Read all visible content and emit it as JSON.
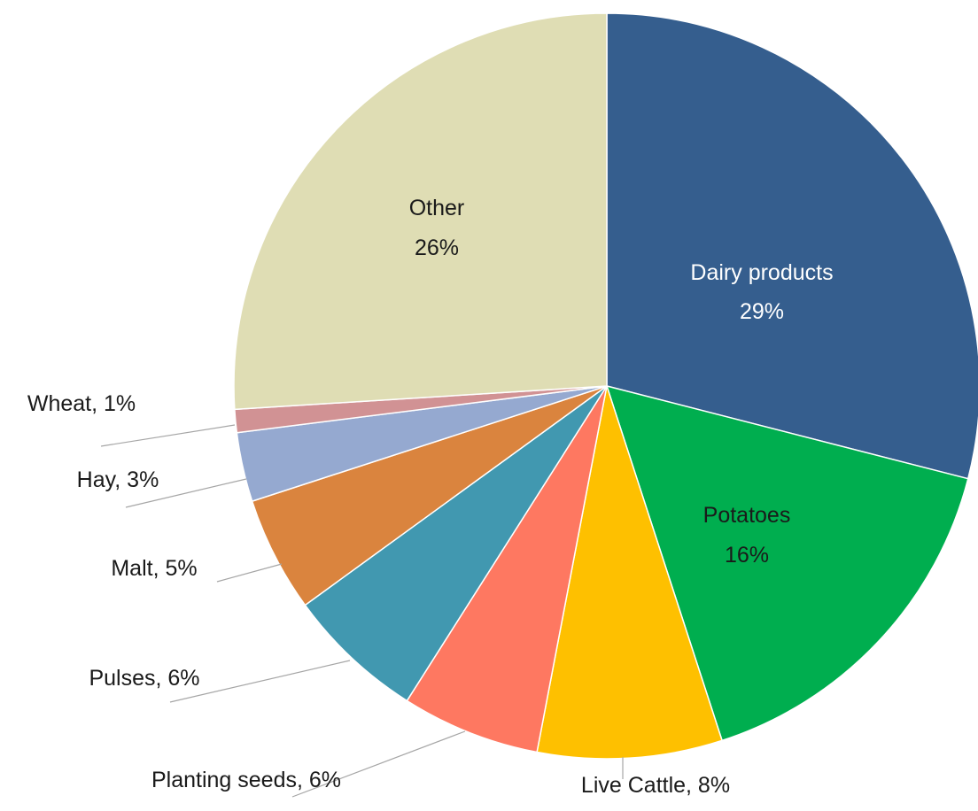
{
  "chart_data": {
    "type": "pie",
    "slices": [
      {
        "label": "Dairy products",
        "value": 29,
        "pct_text": "29%",
        "color": "#355e8e",
        "label_mode": "inside"
      },
      {
        "label": "Potatoes",
        "value": 16,
        "pct_text": "16%",
        "color": "#00ae4f",
        "label_mode": "inside"
      },
      {
        "label": "Live Cattle",
        "value": 8,
        "pct_text": "8%",
        "color": "#fec000",
        "label_mode": "outside"
      },
      {
        "label": "Planting seeds",
        "value": 6,
        "pct_text": "6%",
        "color": "#fe7861",
        "label_mode": "outside"
      },
      {
        "label": "Pulses",
        "value": 6,
        "pct_text": "6%",
        "color": "#4198b0",
        "label_mode": "outside"
      },
      {
        "label": "Malt",
        "value": 5,
        "pct_text": "5%",
        "color": "#da843e",
        "label_mode": "outside"
      },
      {
        "label": "Hay",
        "value": 3,
        "pct_text": "3%",
        "color": "#95a9d0",
        "label_mode": "outside"
      },
      {
        "label": "Wheat",
        "value": 1,
        "pct_text": "1%",
        "color": "#d19294",
        "label_mode": "outside"
      },
      {
        "label": "Other",
        "value": 26,
        "pct_text": "26%",
        "color": "#dfddb4",
        "label_mode": "inside"
      }
    ],
    "start_angle": "12 o'clock",
    "direction": "clockwise",
    "title": "",
    "legend": "none"
  }
}
